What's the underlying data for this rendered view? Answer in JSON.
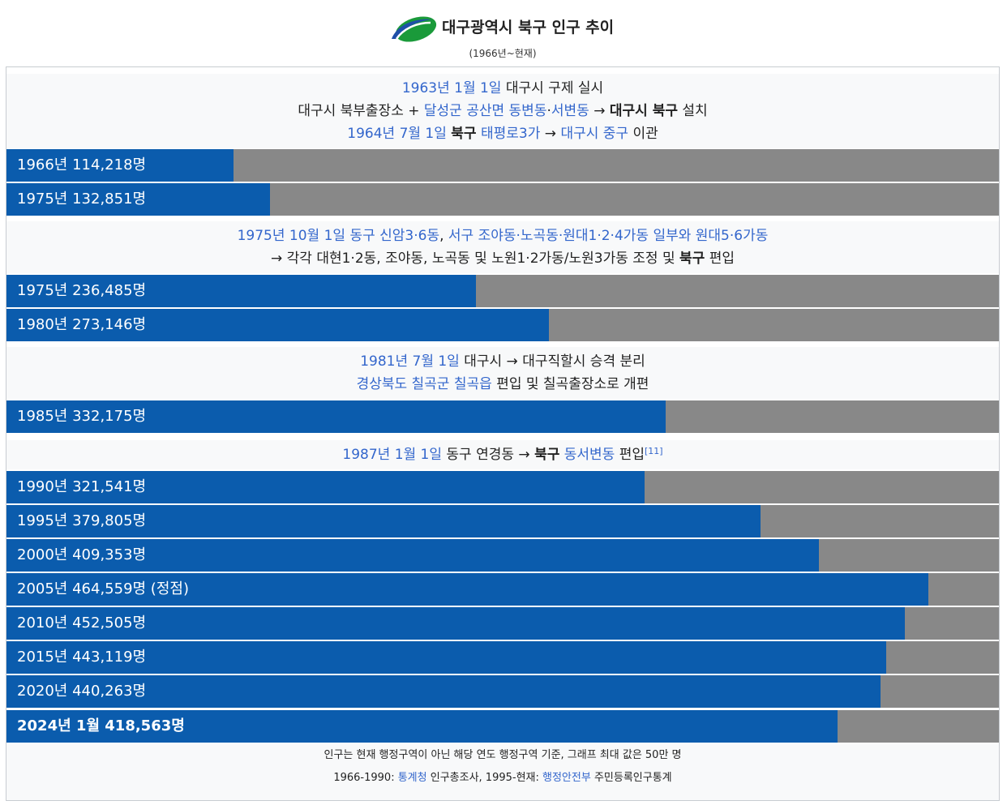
{
  "header": {
    "title": "대구광역시 북구 인구 추이",
    "subtitle": "(1966년~현재)"
  },
  "notes": [
    {
      "lines": [
        [
          {
            "t": "1963년 1월 1일",
            "s": "lk"
          },
          {
            "t": " 대구시 구제 실시",
            "s": ""
          }
        ],
        [
          {
            "t": "대구시 북부출장소 + ",
            "s": ""
          },
          {
            "t": "달성군 공산면 동변동",
            "s": "lk"
          },
          {
            "t": "·",
            "s": ""
          },
          {
            "t": "서변동",
            "s": "lk"
          },
          {
            "t": " → ",
            "s": ""
          },
          {
            "t": "대구시 북구",
            "s": "b"
          },
          {
            "t": " 설치",
            "s": ""
          }
        ],
        [
          {
            "t": "1964년 7월 1일",
            "s": "lk"
          },
          {
            "t": " ",
            "s": ""
          },
          {
            "t": "북구",
            "s": "b"
          },
          {
            "t": " ",
            "s": ""
          },
          {
            "t": "태평로3가",
            "s": "lk"
          },
          {
            "t": " → ",
            "s": ""
          },
          {
            "t": "대구시 중구",
            "s": "lk"
          },
          {
            "t": " 이관",
            "s": ""
          }
        ]
      ]
    },
    {
      "lines": [
        [
          {
            "t": "1975년 10월 1일",
            "s": "lk"
          },
          {
            "t": " ",
            "s": ""
          },
          {
            "t": "동구 신암3·6동",
            "s": "lk"
          },
          {
            "t": ", ",
            "s": ""
          },
          {
            "t": "서구 조야동·노곡동·원대1·2·4가동 일부와 원대5·6가동",
            "s": "lk"
          }
        ],
        [
          {
            "t": "→ 각각 대현1·2동, 조야동, 노곡동 및 노원1·2가동/노원3가동 조정 및 ",
            "s": ""
          },
          {
            "t": "북구",
            "s": "b"
          },
          {
            "t": " 편입",
            "s": ""
          }
        ]
      ]
    },
    {
      "lines": [
        [
          {
            "t": "1981년 7월 1일",
            "s": "lk"
          },
          {
            "t": " 대구시 → 대구직할시 승격 분리",
            "s": ""
          }
        ],
        [
          {
            "t": "경상북도 칠곡군 칠곡읍",
            "s": "lk"
          },
          {
            "t": " 편입 및 칠곡출장소로 개편",
            "s": ""
          }
        ]
      ]
    },
    {
      "lines": [
        [
          {
            "t": "1987년 1월 1일",
            "s": "lk"
          },
          {
            "t": " 동구 연경동 → ",
            "s": ""
          },
          {
            "t": "북구",
            "s": "b"
          },
          {
            "t": " ",
            "s": ""
          },
          {
            "t": "동서변동",
            "s": "lk"
          },
          {
            "t": " 편입",
            "s": ""
          },
          {
            "t": "[11]",
            "s": "lk sup"
          }
        ]
      ]
    }
  ],
  "chart_data": {
    "type": "bar",
    "orientation": "horizontal",
    "max_value": 500000,
    "unit": "명",
    "bars": [
      {
        "label": "1966년 114,218명",
        "year": 1966,
        "value": 114218
      },
      {
        "label": "1975년 132,851명",
        "year": 1975,
        "value": 132851
      },
      {
        "label": "1975년 236,485명",
        "year": 1975,
        "value": 236485
      },
      {
        "label": "1980년 273,146명",
        "year": 1980,
        "value": 273146
      },
      {
        "label": "1985년 332,175명",
        "year": 1985,
        "value": 332175
      },
      {
        "label": "1990년 321,541명",
        "year": 1990,
        "value": 321541
      },
      {
        "label": "1995년 379,805명",
        "year": 1995,
        "value": 379805
      },
      {
        "label": "2000년 409,353명",
        "year": 2000,
        "value": 409353
      },
      {
        "label": "2005년 464,559명 (정점)",
        "year": 2005,
        "value": 464559
      },
      {
        "label": "2010년 452,505명",
        "year": 2010,
        "value": 452505
      },
      {
        "label": "2015년 443,119명",
        "year": 2015,
        "value": 443119
      },
      {
        "label": "2020년 440,263명",
        "year": 2020,
        "value": 440263
      },
      {
        "label": "2024년 1월 418,563명",
        "year": 2024,
        "value": 418563,
        "bold": true
      }
    ],
    "colors": {
      "bar": "#0b5cad",
      "track": "#888888",
      "label": "#ffffff"
    }
  },
  "footer": {
    "line1": "인구는 현재 행정구역이 아닌 해당 연도 행정구역 기준, 그래프 최대 값은 50만 명",
    "line2": [
      {
        "t": "1966-1990: ",
        "s": ""
      },
      {
        "t": "통계청",
        "s": "lk"
      },
      {
        "t": " 인구총조사, 1995-현재: ",
        "s": ""
      },
      {
        "t": "행정안전부",
        "s": "lk"
      },
      {
        "t": " 주민등록인구통계",
        "s": ""
      }
    ]
  },
  "colors": {
    "link": "#3366cc",
    "note_bg": "#f8f9fa",
    "border": "#c8ccd1"
  }
}
